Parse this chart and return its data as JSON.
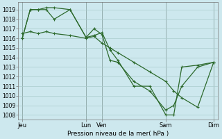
{
  "background_color": "#cde8ee",
  "grid_color": "#aacccc",
  "line_color": "#2d6a2d",
  "marker_color": "#2d6a2d",
  "xlabel_text": "Pression niveau de la mer( hPa )",
  "ylim": [
    1007.5,
    1019.8
  ],
  "yticks": [
    1008,
    1009,
    1010,
    1011,
    1012,
    1013,
    1014,
    1015,
    1016,
    1017,
    1018,
    1019
  ],
  "day_lines_x": [
    0,
    96,
    120,
    216,
    288
  ],
  "xtick_positions": [
    0,
    96,
    120,
    216,
    288
  ],
  "xtick_labels": [
    "Jeu",
    "Lun",
    "Ven",
    "Sam",
    "Dim"
  ],
  "xlim": [
    -6,
    294
  ],
  "series": [
    {
      "x": [
        0,
        12,
        24,
        36,
        48,
        72,
        96,
        108,
        120,
        132,
        144,
        168,
        192,
        216,
        228,
        240,
        264,
        288
      ],
      "y": [
        1016.0,
        1019.0,
        1019.0,
        1019.2,
        1019.2,
        1019.0,
        1016.1,
        1016.3,
        1016.6,
        1014.8,
        1013.7,
        1011.0,
        1011.0,
        1008.0,
        1008.0,
        1013.0,
        1013.2,
        1013.5
      ]
    },
    {
      "x": [
        0,
        12,
        24,
        36,
        48,
        72,
        96,
        108,
        120,
        132,
        144,
        168,
        192,
        216,
        228,
        240,
        264,
        288
      ],
      "y": [
        1016.0,
        1019.0,
        1019.0,
        1019.0,
        1018.0,
        1019.0,
        1016.1,
        1017.0,
        1016.4,
        1013.7,
        1013.5,
        1011.5,
        1010.5,
        1008.5,
        1009.0,
        1011.0,
        1013.0,
        1013.5
      ]
    },
    {
      "x": [
        0,
        12,
        24,
        36,
        48,
        72,
        96,
        108,
        120,
        132,
        144,
        168,
        192,
        216,
        228,
        240,
        264,
        288
      ],
      "y": [
        1016.5,
        1016.7,
        1016.5,
        1016.7,
        1016.5,
        1016.3,
        1016.0,
        1016.2,
        1015.5,
        1015.0,
        1014.5,
        1013.5,
        1012.5,
        1011.5,
        1010.5,
        1009.8,
        1008.8,
        1013.5
      ]
    }
  ]
}
